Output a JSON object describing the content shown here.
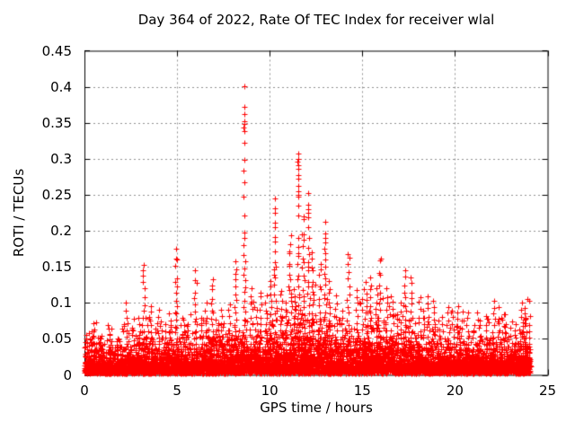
{
  "chart": {
    "title": "Day 364 of 2022, Rate Of TEC Index for receiver wlal",
    "xlabel": "GPS time / hours",
    "ylabel": "ROTI / TECUs"
  },
  "chart_data": {
    "type": "scatter",
    "title": "Day 364 of 2022, Rate Of TEC Index for receiver wlal",
    "xlabel": "GPS time / hours",
    "ylabel": "ROTI / TECUs",
    "xlim": [
      0,
      25
    ],
    "ylim": [
      0,
      0.45
    ],
    "xticks": [
      0,
      5,
      10,
      15,
      20,
      25
    ],
    "xtick_labels": [
      "0",
      "5",
      "10",
      "15",
      "20",
      "25"
    ],
    "yticks": [
      0,
      0.05,
      0.1,
      0.15,
      0.2,
      0.25,
      0.3,
      0.35,
      0.4,
      0.45
    ],
    "ytick_labels": [
      "0",
      "0.05",
      "0.1",
      "0.15",
      "0.2",
      "0.25",
      "0.3",
      "0.35",
      "0.4",
      "0.45"
    ],
    "grid": true,
    "grid_style": "dashed",
    "grid_color": "#909090",
    "frame_color": "#000000",
    "marker": "plus",
    "marker_color": "#ff0000",
    "marker_size_px": 7,
    "legend": "none",
    "series_name": "ROTI",
    "data_start_hour": 0,
    "data_end_hour": 24.05,
    "baseline_band_max_by_hour": [
      [
        0,
        0.03
      ],
      [
        1,
        0.028
      ],
      [
        2,
        0.03
      ],
      [
        3,
        0.034
      ],
      [
        4,
        0.036
      ],
      [
        5,
        0.036
      ],
      [
        6,
        0.034
      ],
      [
        7,
        0.036
      ],
      [
        8,
        0.04
      ],
      [
        9,
        0.04
      ],
      [
        10,
        0.045
      ],
      [
        11,
        0.05
      ],
      [
        12,
        0.05
      ],
      [
        13,
        0.046
      ],
      [
        14,
        0.038
      ],
      [
        15,
        0.042
      ],
      [
        16,
        0.046
      ],
      [
        17,
        0.042
      ],
      [
        18,
        0.04
      ],
      [
        19,
        0.036
      ],
      [
        20,
        0.036
      ],
      [
        21,
        0.034
      ],
      [
        22,
        0.036
      ],
      [
        23,
        0.038
      ],
      [
        24,
        0.042
      ],
      [
        24.05,
        0.042
      ]
    ],
    "spike_envelope": [
      [
        0.1,
        0.055
      ],
      [
        0.5,
        0.072
      ],
      [
        0.9,
        0.05
      ],
      [
        1.35,
        0.065
      ],
      [
        1.8,
        0.05
      ],
      [
        2.25,
        0.1
      ],
      [
        2.6,
        0.062
      ],
      [
        3.0,
        0.07
      ],
      [
        3.2,
        0.155
      ],
      [
        3.45,
        0.08
      ],
      [
        3.6,
        0.095
      ],
      [
        4.0,
        0.09
      ],
      [
        4.35,
        0.07
      ],
      [
        4.6,
        0.085
      ],
      [
        4.95,
        0.175
      ],
      [
        5.3,
        0.08
      ],
      [
        5.6,
        0.07
      ],
      [
        6.0,
        0.145
      ],
      [
        6.3,
        0.08
      ],
      [
        6.55,
        0.1
      ],
      [
        6.9,
        0.135
      ],
      [
        7.2,
        0.07
      ],
      [
        7.4,
        0.09
      ],
      [
        7.8,
        0.1
      ],
      [
        8.15,
        0.158
      ],
      [
        8.62,
        0.18
      ],
      [
        9.0,
        0.12
      ],
      [
        9.3,
        0.09
      ],
      [
        9.5,
        0.117
      ],
      [
        9.8,
        0.1
      ],
      [
        10.05,
        0.13
      ],
      [
        10.28,
        0.15
      ],
      [
        10.6,
        0.12
      ],
      [
        10.85,
        0.1
      ],
      [
        11.1,
        0.195
      ],
      [
        11.35,
        0.12
      ],
      [
        11.53,
        0.17
      ],
      [
        11.8,
        0.22
      ],
      [
        12.08,
        0.16
      ],
      [
        12.3,
        0.17
      ],
      [
        12.7,
        0.155
      ],
      [
        12.98,
        0.15
      ],
      [
        13.2,
        0.13
      ],
      [
        13.6,
        0.11
      ],
      [
        13.9,
        0.09
      ],
      [
        14.25,
        0.168
      ],
      [
        14.7,
        0.12
      ],
      [
        15.15,
        0.13
      ],
      [
        15.4,
        0.135
      ],
      [
        15.8,
        0.12
      ],
      [
        15.95,
        0.165
      ],
      [
        16.3,
        0.12
      ],
      [
        16.6,
        0.11
      ],
      [
        16.9,
        0.085
      ],
      [
        17.1,
        0.1
      ],
      [
        17.3,
        0.145
      ],
      [
        17.65,
        0.135
      ],
      [
        18.1,
        0.11
      ],
      [
        18.35,
        0.09
      ],
      [
        18.55,
        0.11
      ],
      [
        18.85,
        0.105
      ],
      [
        19.1,
        0.075
      ],
      [
        19.3,
        0.08
      ],
      [
        19.6,
        0.095
      ],
      [
        19.85,
        0.09
      ],
      [
        20.15,
        0.095
      ],
      [
        20.4,
        0.075
      ],
      [
        20.65,
        0.08
      ],
      [
        21.0,
        0.07
      ],
      [
        21.35,
        0.075
      ],
      [
        21.7,
        0.07
      ],
      [
        22.1,
        0.103
      ],
      [
        22.35,
        0.08
      ],
      [
        22.6,
        0.085
      ],
      [
        23.05,
        0.075
      ],
      [
        23.3,
        0.07
      ],
      [
        23.6,
        0.1
      ],
      [
        23.8,
        0.095
      ],
      [
        24.0,
        0.07
      ]
    ],
    "high_point_clusters": [
      {
        "x": 8.62,
        "points": [
          0.401,
          0.372,
          0.362,
          0.352,
          0.348,
          0.344,
          0.339,
          0.322,
          0.298,
          0.283,
          0.268,
          0.248,
          0.221,
          0.198,
          0.19
        ]
      },
      {
        "x": 11.53,
        "points": [
          0.307,
          0.3,
          0.296,
          0.291,
          0.286,
          0.277,
          0.272,
          0.262,
          0.255,
          0.25,
          0.247,
          0.235,
          0.221,
          0.19,
          0.178
        ]
      },
      {
        "x": 10.28,
        "points": [
          0.245,
          0.231,
          0.225,
          0.211,
          0.205,
          0.191,
          0.185,
          0.171,
          0.156,
          0.147
        ]
      },
      {
        "x": 12.08,
        "points": [
          0.252,
          0.236,
          0.23,
          0.225,
          0.219,
          0.205,
          0.19,
          0.176,
          0.168
        ]
      },
      {
        "x": 12.98,
        "points": [
          0.212,
          0.196,
          0.19,
          0.184,
          0.175,
          0.169,
          0.16
        ]
      }
    ],
    "gen": {
      "seed": 42,
      "n_baseline_points": 6500
    }
  }
}
